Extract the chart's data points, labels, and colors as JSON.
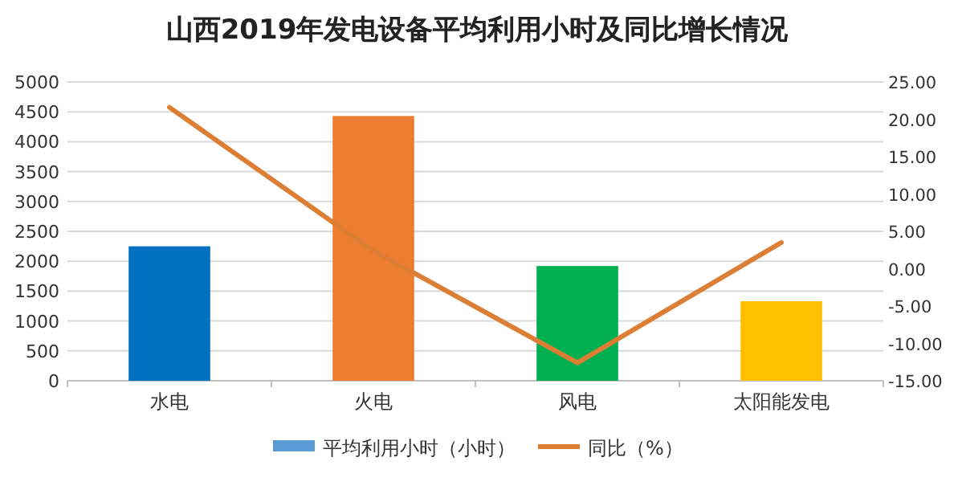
{
  "chart_data": {
    "type": "bar",
    "title": "山西2019年发电设备平均利用小时及同比增长情况",
    "categories": [
      "水电",
      "火电",
      "风电",
      "太阳能发电"
    ],
    "series": [
      {
        "name": "平均利用小时（小时）",
        "color": "#5b9bd5",
        "colors": [
          "#0070c0",
          "#ed7d31",
          "#00b050",
          "#ffc000"
        ],
        "values": [
          2250,
          4430,
          1920,
          1330
        ]
      },
      {
        "name": "同比（%）",
        "type": "line",
        "axis": "y2",
        "color": "#dd7e35",
        "values": [
          21.6,
          2.4,
          -12.6,
          3.5
        ]
      }
    ],
    "ylim": [
      0,
      5000
    ],
    "yticks": [
      0,
      500,
      1000,
      1500,
      2000,
      2500,
      3000,
      3500,
      4000,
      4500,
      5000
    ],
    "y2lim": [
      -15,
      25
    ],
    "y2ticks": [
      {
        "value": -15,
        "label": "-15.00"
      },
      {
        "value": -10,
        "label": "-10.00"
      },
      {
        "value": -5,
        "label": "-5.00"
      },
      {
        "value": 0,
        "label": "0.00"
      },
      {
        "value": 5,
        "label": "5.00"
      },
      {
        "value": 10,
        "label": "10.00"
      },
      {
        "value": 15,
        "label": "15.00"
      },
      {
        "value": 20,
        "label": "20.00"
      },
      {
        "value": 25,
        "label": "25.00"
      }
    ],
    "grid": "y",
    "legend": "bottom"
  }
}
